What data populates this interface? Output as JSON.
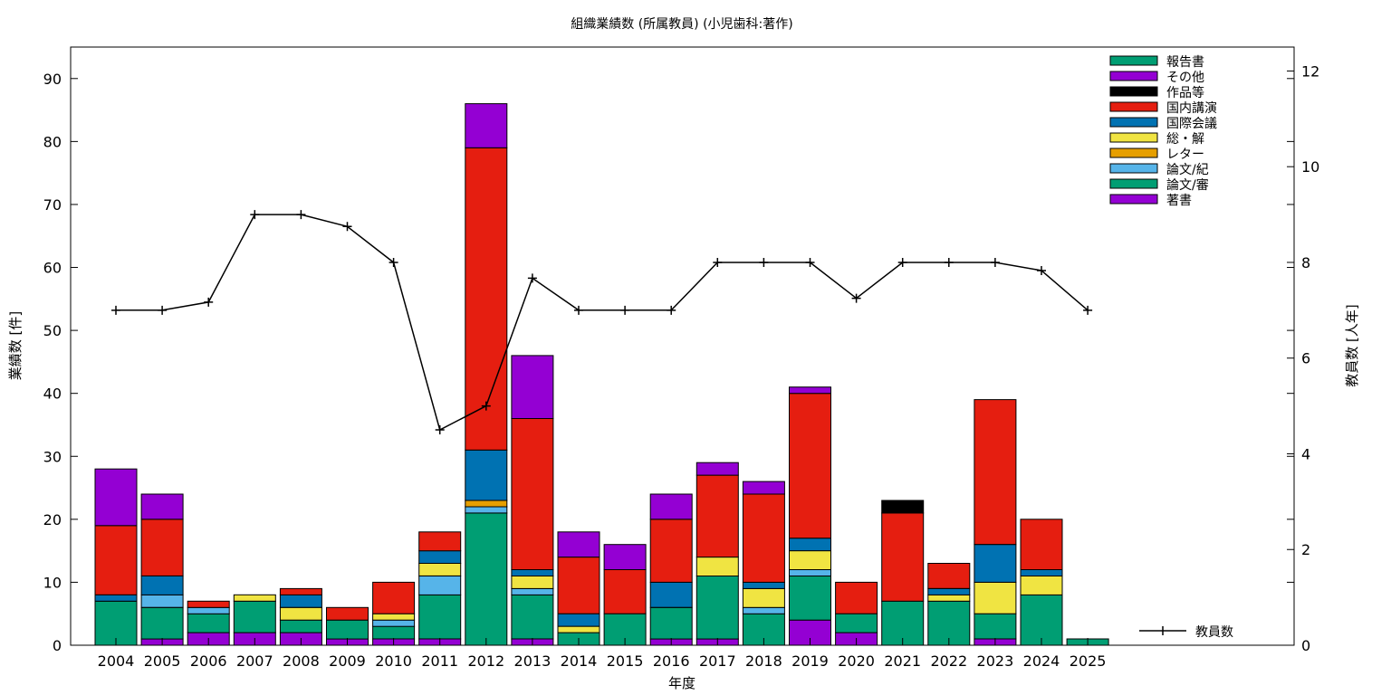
{
  "chart_data": {
    "type": "bar",
    "title": "組織業績数 (所属教員) (小児歯科:著作)",
    "xlabel": "年度",
    "ylabel": "業績数 [件]",
    "y2label": "教員数 [人年]",
    "ylim": [
      0,
      95
    ],
    "y2lim": [
      0,
      12.5
    ],
    "yticks": [
      0,
      10,
      20,
      30,
      40,
      50,
      60,
      70,
      80,
      90
    ],
    "y2ticks": [
      0,
      2,
      4,
      6,
      8,
      10,
      12
    ],
    "legend_position": "top-right",
    "categories": [
      "2004",
      "2005",
      "2006",
      "2007",
      "2008",
      "2009",
      "2010",
      "2011",
      "2012",
      "2013",
      "2014",
      "2015",
      "2016",
      "2017",
      "2018",
      "2019",
      "2020",
      "2021",
      "2022",
      "2023",
      "2024",
      "2025"
    ],
    "series": [
      {
        "name": "著書",
        "color": "#9400d3",
        "values": [
          0,
          1,
          2,
          2,
          2,
          1,
          1,
          1,
          0,
          1,
          0,
          0,
          1,
          1,
          0,
          4,
          2,
          0,
          0,
          1,
          0,
          0
        ]
      },
      {
        "name": "論文/審",
        "color": "#009e73",
        "values": [
          7,
          5,
          3,
          5,
          2,
          3,
          2,
          7,
          21,
          7,
          2,
          5,
          5,
          10,
          5,
          7,
          3,
          7,
          7,
          4,
          8,
          1
        ]
      },
      {
        "name": "論文/紀",
        "color": "#56b4e9",
        "values": [
          0,
          2,
          1,
          0,
          0,
          0,
          1,
          3,
          1,
          1,
          0,
          0,
          0,
          0,
          1,
          1,
          0,
          0,
          0,
          0,
          0,
          0
        ]
      },
      {
        "name": "レター",
        "color": "#e69f00",
        "values": [
          0,
          0,
          0,
          0,
          0,
          0,
          0,
          0,
          1,
          0,
          0,
          0,
          0,
          0,
          0,
          0,
          0,
          0,
          0,
          0,
          0,
          0
        ]
      },
      {
        "name": "総・解",
        "color": "#f0e442",
        "values": [
          0,
          0,
          0,
          1,
          2,
          0,
          1,
          2,
          0,
          2,
          1,
          0,
          0,
          3,
          3,
          3,
          0,
          0,
          1,
          5,
          3,
          0
        ]
      },
      {
        "name": "国際会議",
        "color": "#0072b2",
        "values": [
          1,
          3,
          0,
          0,
          2,
          0,
          0,
          2,
          8,
          1,
          2,
          0,
          4,
          0,
          1,
          2,
          0,
          0,
          1,
          6,
          1,
          0
        ]
      },
      {
        "name": "国内講演",
        "color": "#e51e10",
        "values": [
          11,
          9,
          1,
          0,
          1,
          2,
          5,
          3,
          48,
          24,
          9,
          7,
          10,
          13,
          14,
          23,
          5,
          14,
          4,
          23,
          8,
          0
        ]
      },
      {
        "name": "作品等",
        "color": "#000000",
        "values": [
          0,
          0,
          0,
          0,
          0,
          0,
          0,
          0,
          0,
          0,
          0,
          0,
          0,
          0,
          0,
          0,
          0,
          2,
          0,
          0,
          0,
          0
        ]
      },
      {
        "name": "その他",
        "color": "#9400d3",
        "values": [
          9,
          4,
          0,
          0,
          0,
          0,
          0,
          0,
          7,
          10,
          4,
          4,
          4,
          2,
          2,
          1,
          0,
          0,
          0,
          0,
          0,
          0
        ]
      },
      {
        "name": "報告書",
        "color": "#009e73",
        "values": [
          0,
          0,
          0,
          0,
          0,
          0,
          0,
          0,
          0,
          0,
          0,
          0,
          0,
          0,
          0,
          0,
          0,
          0,
          0,
          0,
          0,
          0
        ]
      }
    ],
    "line_series": {
      "name": "教員数",
      "axis": "y2",
      "color": "#000000",
      "values": [
        7,
        7,
        7.17,
        9,
        9,
        8.75,
        8,
        4.5,
        5,
        7.67,
        7,
        7,
        7,
        8,
        8,
        8,
        7.25,
        8,
        8,
        8,
        7.83,
        7
      ]
    }
  }
}
